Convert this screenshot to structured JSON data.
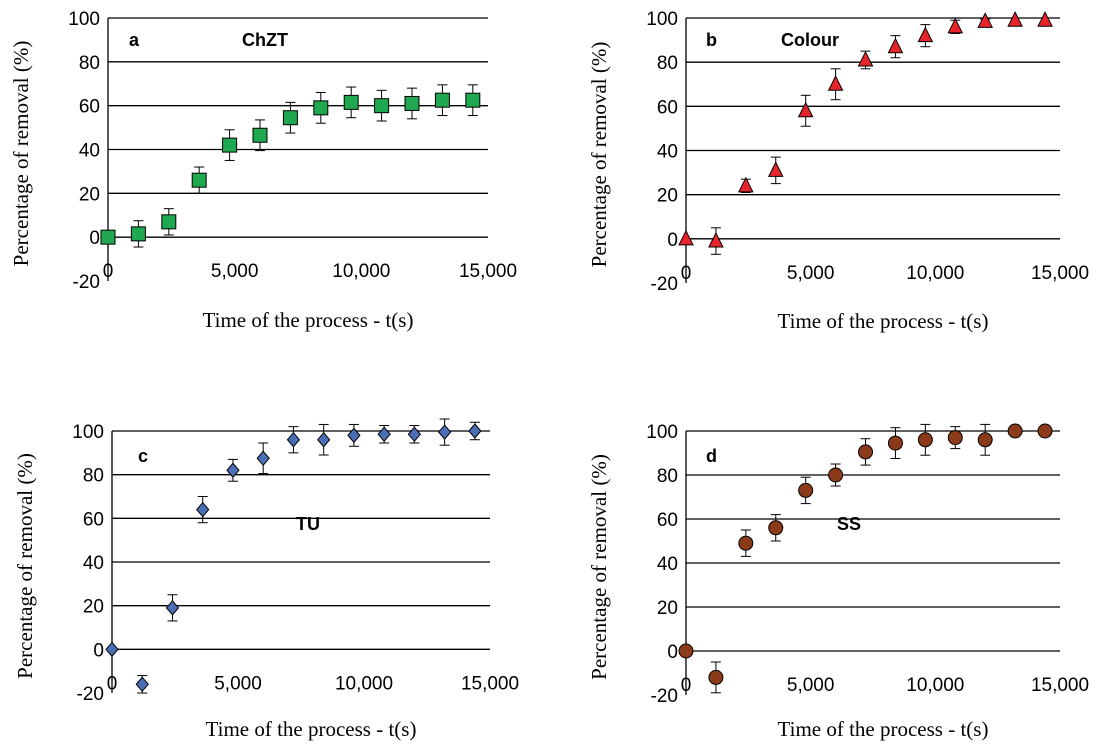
{
  "chart_data": [
    {
      "type": "scatter",
      "panel_label": "a",
      "series_label": "ChZT",
      "xlabel": "Time of the process - t(s)",
      "ylabel": "Percentage of removal (%)",
      "xlim": [
        0,
        15000
      ],
      "ylim": [
        -20,
        100
      ],
      "x_ticks": [
        "0",
        "5,000",
        "10,000",
        "15,000"
      ],
      "y_ticks": [
        "-20",
        "0",
        "20",
        "40",
        "60",
        "80",
        "100"
      ],
      "grid": "horizontal",
      "marker": "square",
      "color": "#1fa84f",
      "points": [
        {
          "x": 0,
          "y": 0,
          "err": 0
        },
        {
          "x": 1200,
          "y": 1.5,
          "err": 6
        },
        {
          "x": 2400,
          "y": 7,
          "err": 6
        },
        {
          "x": 3600,
          "y": 26,
          "err": 6
        },
        {
          "x": 4800,
          "y": 42,
          "err": 7
        },
        {
          "x": 6000,
          "y": 46.5,
          "err": 7
        },
        {
          "x": 7200,
          "y": 54.5,
          "err": 7
        },
        {
          "x": 8400,
          "y": 59,
          "err": 7
        },
        {
          "x": 9600,
          "y": 61.5,
          "err": 7
        },
        {
          "x": 10800,
          "y": 60,
          "err": 7
        },
        {
          "x": 12000,
          "y": 61,
          "err": 7
        },
        {
          "x": 13200,
          "y": 62.5,
          "err": 7
        },
        {
          "x": 14400,
          "y": 62.5,
          "err": 7
        }
      ]
    },
    {
      "type": "scatter",
      "panel_label": "b",
      "series_label": "Colour",
      "xlabel": "Time of the process - t(s)",
      "ylabel": "Percentage of removal (%)",
      "xlim": [
        0,
        15000
      ],
      "ylim": [
        -20,
        100
      ],
      "x_ticks": [
        "0",
        "5,000",
        "10,000",
        "15,000"
      ],
      "y_ticks": [
        "-20",
        "0",
        "20",
        "40",
        "60",
        "80",
        "100"
      ],
      "grid": "horizontal",
      "marker": "triangle",
      "color": "#e8242b",
      "points": [
        {
          "x": 0,
          "y": 0,
          "err": 0
        },
        {
          "x": 1200,
          "y": -1,
          "err": 6
        },
        {
          "x": 2400,
          "y": 24,
          "err": 3
        },
        {
          "x": 3600,
          "y": 31,
          "err": 6
        },
        {
          "x": 4800,
          "y": 58,
          "err": 7
        },
        {
          "x": 6000,
          "y": 70,
          "err": 7
        },
        {
          "x": 7200,
          "y": 81,
          "err": 4
        },
        {
          "x": 8400,
          "y": 87,
          "err": 5
        },
        {
          "x": 9600,
          "y": 92,
          "err": 5
        },
        {
          "x": 10800,
          "y": 96,
          "err": 3
        },
        {
          "x": 12000,
          "y": 98.5,
          "err": 1
        },
        {
          "x": 13200,
          "y": 99,
          "err": 1
        },
        {
          "x": 14400,
          "y": 99,
          "err": 1
        }
      ]
    },
    {
      "type": "scatter",
      "panel_label": "c",
      "series_label": "TU",
      "xlabel": "Time of the process - t(s)",
      "ylabel": "Percentage of removal (%)",
      "xlim": [
        0,
        15000
      ],
      "ylim": [
        -20,
        100
      ],
      "x_ticks": [
        "0",
        "5,000",
        "10,000",
        "15,000"
      ],
      "y_ticks": [
        "-20",
        "0",
        "20",
        "40",
        "60",
        "80",
        "100"
      ],
      "grid": "horizontal",
      "marker": "diamond",
      "color": "#4a6fb5",
      "points": [
        {
          "x": 0,
          "y": 0,
          "err": 0
        },
        {
          "x": 1200,
          "y": -16,
          "err": 4
        },
        {
          "x": 2400,
          "y": 19,
          "err": 6
        },
        {
          "x": 3600,
          "y": 64,
          "err": 6
        },
        {
          "x": 4800,
          "y": 82,
          "err": 5
        },
        {
          "x": 6000,
          "y": 87.5,
          "err": 7
        },
        {
          "x": 7200,
          "y": 96,
          "err": 6
        },
        {
          "x": 8400,
          "y": 96,
          "err": 7
        },
        {
          "x": 9600,
          "y": 98,
          "err": 5
        },
        {
          "x": 10800,
          "y": 98.5,
          "err": 4
        },
        {
          "x": 12000,
          "y": 98.5,
          "err": 4
        },
        {
          "x": 13200,
          "y": 99.5,
          "err": 6
        },
        {
          "x": 14400,
          "y": 100,
          "err": 4
        }
      ]
    },
    {
      "type": "scatter",
      "panel_label": "d",
      "series_label": "SS",
      "xlabel": "Time of the process - t(s)",
      "ylabel": "Percentage of removal (%)",
      "xlim": [
        0,
        15000
      ],
      "ylim": [
        -20,
        100
      ],
      "x_ticks": [
        "0",
        "5,000",
        "10,000",
        "15,000"
      ],
      "y_ticks": [
        "-20",
        "0",
        "20",
        "40",
        "60",
        "80",
        "100"
      ],
      "grid": "horizontal",
      "marker": "circle",
      "color": "#8b3a1a",
      "points": [
        {
          "x": 0,
          "y": 0,
          "err": 0
        },
        {
          "x": 1200,
          "y": -12,
          "err": 7
        },
        {
          "x": 2400,
          "y": 49,
          "err": 6
        },
        {
          "x": 3600,
          "y": 56,
          "err": 6
        },
        {
          "x": 4800,
          "y": 73,
          "err": 6
        },
        {
          "x": 6000,
          "y": 80,
          "err": 5
        },
        {
          "x": 7200,
          "y": 90.5,
          "err": 6
        },
        {
          "x": 8400,
          "y": 94.5,
          "err": 7
        },
        {
          "x": 9600,
          "y": 96,
          "err": 7
        },
        {
          "x": 10800,
          "y": 97,
          "err": 5
        },
        {
          "x": 12000,
          "y": 96,
          "err": 7
        },
        {
          "x": 13200,
          "y": 100,
          "err": 1
        },
        {
          "x": 14400,
          "y": 100,
          "err": 2
        }
      ]
    }
  ]
}
